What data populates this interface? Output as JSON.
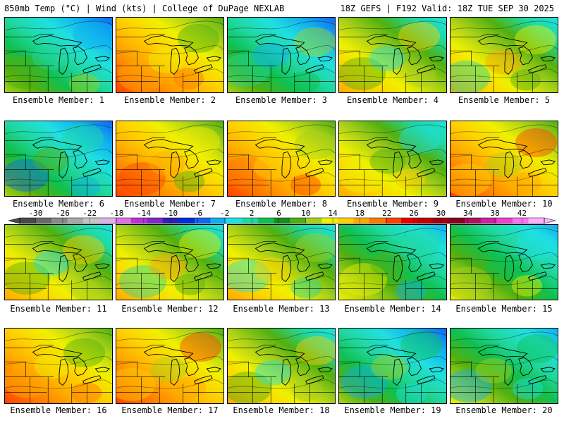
{
  "header": {
    "left": "850mb Temp (°C) | Wind (kts) | College of DuPage NEXLAB",
    "right": "18Z GEFS | F192 Valid: 18Z TUE SEP 30 2025"
  },
  "panels": [
    {
      "label": "Ensemble Member: 1",
      "palette": "cold"
    },
    {
      "label": "Ensemble Member: 2",
      "palette": "warm"
    },
    {
      "label": "Ensemble Member: 3",
      "palette": "cold"
    },
    {
      "label": "Ensemble Member: 4",
      "palette": "mild"
    },
    {
      "label": "Ensemble Member: 5",
      "palette": "mild"
    },
    {
      "label": "Ensemble Member: 6",
      "palette": "cold"
    },
    {
      "label": "Ensemble Member: 7",
      "palette": "warm"
    },
    {
      "label": "Ensemble Member: 8",
      "palette": "warm"
    },
    {
      "label": "Ensemble Member: 9",
      "palette": "mild"
    },
    {
      "label": "Ensemble Member: 10",
      "palette": "warm"
    },
    {
      "label": "Ensemble Member: 11",
      "palette": "mild"
    },
    {
      "label": "Ensemble Member: 12",
      "palette": "mild"
    },
    {
      "label": "Ensemble Member: 13",
      "palette": "mild"
    },
    {
      "label": "Ensemble Member: 14",
      "palette": "cool"
    },
    {
      "label": "Ensemble Member: 15",
      "palette": "cool"
    },
    {
      "label": "Ensemble Member: 16",
      "palette": "warm"
    },
    {
      "label": "Ensemble Member: 17",
      "palette": "warm"
    },
    {
      "label": "Ensemble Member: 18",
      "palette": "mild"
    },
    {
      "label": "Ensemble Member: 19",
      "palette": "cold"
    },
    {
      "label": "Ensemble Member: 20",
      "palette": "cool"
    }
  ],
  "colorbar": {
    "tick_labels": [
      "-30",
      "-26",
      "-22",
      "-18",
      "-14",
      "-10",
      "-6",
      "-2",
      "2",
      "6",
      "10",
      "14",
      "18",
      "22",
      "26",
      "30",
      "34",
      "38",
      "42"
    ],
    "colors": [
      "#4a4a4a",
      "#6a6a6a",
      "#8a8a8a",
      "#a8a8a8",
      "#c6c6c6",
      "#dcb4e6",
      "#e070e8",
      "#c030d8",
      "#8028c8",
      "#3020b0",
      "#0030d8",
      "#1068f0",
      "#10b0f0",
      "#20e0e0",
      "#20d8a0",
      "#10c050",
      "#109020",
      "#50b010",
      "#a8d018",
      "#f0f000",
      "#ffd000",
      "#ffa800",
      "#ff7800",
      "#ff4000",
      "#e80000",
      "#c00000",
      "#a00010",
      "#880020",
      "#b01060",
      "#d020a0",
      "#f040d0",
      "#ff70f0",
      "#ffb0ff"
    ]
  },
  "palettes": {
    "cold": [
      "#a8d018",
      "#50b010",
      "#10c050",
      "#20d8a0",
      "#20e0e0",
      "#10b0f0",
      "#1068f0"
    ],
    "cool": [
      "#f0f000",
      "#a8d018",
      "#50b010",
      "#10c050",
      "#20d8a0",
      "#20e0e0",
      "#10b0f0"
    ],
    "mild": [
      "#ffa800",
      "#ffd000",
      "#f0f000",
      "#a8d018",
      "#50b010",
      "#20d8a0",
      "#20e0e0"
    ],
    "warm": [
      "#ff4000",
      "#ff7800",
      "#ffa800",
      "#ffd000",
      "#f0f000",
      "#a8d018",
      "#50b010"
    ]
  },
  "map_line_color": "#000000"
}
